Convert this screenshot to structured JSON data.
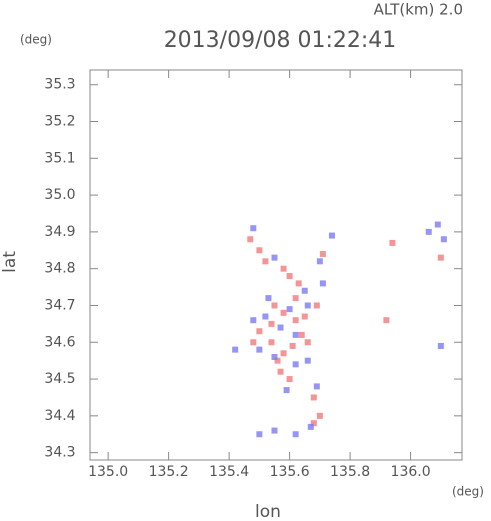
{
  "chart_data": {
    "type": "scatter",
    "title": "2013/09/08 01:22:41",
    "annotation": "ALT(km) 2.0",
    "y_unit": "(deg)",
    "x_unit": "(deg)",
    "xlabel": "lon",
    "ylabel": "lat",
    "xlim": [
      134.94,
      136.17
    ],
    "ylim": [
      34.28,
      35.34
    ],
    "xticks": [
      {
        "value": 135,
        "label": "135.0"
      },
      135.2,
      135.4,
      135.6,
      135.8,
      {
        "value": 136,
        "label": "136.0"
      }
    ],
    "yticks": [
      34.3,
      34.4,
      34.5,
      34.6,
      34.7,
      34.8,
      34.9,
      {
        "value": 35,
        "label": "35.0"
      },
      35.1,
      35.2,
      35.3
    ],
    "series": [
      {
        "color": "#f07a7a",
        "x": [
          135.47,
          135.5,
          135.52,
          135.58,
          135.6,
          135.62,
          135.55,
          135.58,
          135.62,
          135.65,
          135.5,
          135.54,
          135.58,
          135.61,
          135.64,
          135.57,
          135.6,
          135.68,
          135.7,
          135.68,
          135.94,
          136.1,
          135.54,
          135.66,
          135.63,
          135.71,
          135.48,
          135.56,
          135.69,
          135.92
        ],
        "values": [
          34.88,
          34.85,
          34.82,
          34.8,
          34.78,
          34.72,
          34.7,
          34.68,
          34.66,
          34.67,
          34.63,
          34.6,
          34.57,
          34.59,
          34.62,
          34.52,
          34.5,
          34.45,
          34.4,
          34.38,
          34.87,
          34.83,
          34.65,
          34.6,
          34.76,
          34.84,
          34.6,
          34.55,
          34.7,
          34.66
        ]
      },
      {
        "color": "#7a7af0",
        "x": [
          135.48,
          135.55,
          135.7,
          135.74,
          135.6,
          135.66,
          135.52,
          135.57,
          135.62,
          135.5,
          135.55,
          135.62,
          135.59,
          135.69,
          135.5,
          135.55,
          135.62,
          135.67,
          136.06,
          136.09,
          136.11,
          136.1,
          135.42,
          135.71,
          135.65,
          135.53,
          135.48,
          135.66
        ],
        "values": [
          34.91,
          34.83,
          34.82,
          34.89,
          34.69,
          34.7,
          34.67,
          34.64,
          34.62,
          34.58,
          34.56,
          34.54,
          34.47,
          34.48,
          34.35,
          34.36,
          34.35,
          34.37,
          34.9,
          34.92,
          34.88,
          34.59,
          34.58,
          34.76,
          34.74,
          34.72,
          34.66,
          34.55
        ]
      }
    ]
  }
}
